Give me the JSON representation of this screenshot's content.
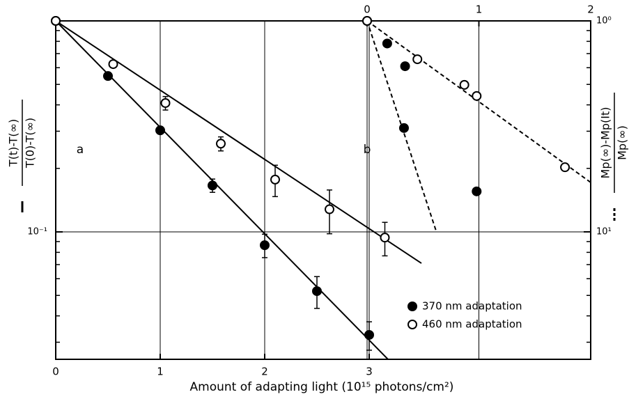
{
  "chart_data": {
    "type": "scatter",
    "xlabel": "Amount of adapting light (10¹⁵ photons/cm²)",
    "ylabel": {
      "numerator": "T(t)-T(∞)",
      "denominator": "T(0)-T(∞)"
    },
    "y2label": {
      "numerator": "Mp(∞)-Mp(It)",
      "denominator": "Mp(∞)"
    },
    "annotations": [
      "a",
      "b"
    ],
    "xlim": [
      0,
      5.12
    ],
    "xticks": [
      0,
      1,
      2,
      3
    ],
    "x2lim": [
      0,
      2
    ],
    "x2ticks": [
      0,
      1,
      2
    ],
    "ylim": [
      0.0249,
      1
    ],
    "yticks": [
      {
        "value": 0.1,
        "label": "10⁻¹"
      }
    ],
    "yminorticks": [
      0.03,
      0.04,
      0.05,
      0.06,
      0.07,
      0.08,
      0.09,
      0.2,
      0.3,
      0.4,
      0.5,
      0.6,
      0.7,
      0.8,
      0.9
    ],
    "y2lim": [
      40.2,
      1
    ],
    "y2ticks": [
      {
        "value": 1,
        "label": "10⁰"
      },
      {
        "value": 10,
        "label": "10¹"
      }
    ],
    "log_y": true,
    "grid": true,
    "legend": "lower right",
    "series": [
      {
        "name": "370 nm adaptation",
        "color": "#000",
        "marker": "filled",
        "line_style": "solid",
        "x": [
          0,
          0.5,
          1.0,
          1.5,
          2.0,
          2.5,
          3.0
        ],
        "values": [
          1,
          0.548,
          0.303,
          0.166,
          0.0865,
          0.0524,
          0.0325
        ],
        "errors": [
          null,
          null,
          null,
          0.012,
          0.011,
          0.009,
          0.005
        ],
        "fit": {
          "x": [
            0,
            3.18
          ],
          "values": [
            1,
            0.0249
          ]
        }
      },
      {
        "name": "460 nm adaptation",
        "color": "#000",
        "marker": "open",
        "line_style": "solid",
        "x": [
          0,
          0.55,
          1.05,
          1.58,
          2.1,
          2.62,
          3.15
        ],
        "values": [
          1,
          0.624,
          0.408,
          0.262,
          0.177,
          0.128,
          0.094
        ],
        "errors": [
          null,
          null,
          0.03,
          0.02,
          0.03,
          0.03,
          0.017
        ],
        "fit": {
          "x": [
            0,
            3.5
          ],
          "values": [
            1,
            0.071
          ]
        }
      },
      {
        "axis": "y2",
        "color": "#000",
        "marker": "filled",
        "line_style": "dashed",
        "x": [
          0,
          0.18,
          0.34,
          0.33,
          0.98
        ],
        "values": [
          1,
          1.28,
          1.64,
          3.22,
          6.43
        ],
        "fit": {
          "x": [
            0,
            0.62
          ],
          "values": [
            1,
            10
          ]
        }
      },
      {
        "axis": "y2",
        "color": "#000",
        "marker": "open",
        "line_style": "dashed",
        "x": [
          0,
          0.45,
          0.87,
          0.98,
          1.77
        ],
        "values": [
          1,
          1.52,
          2.01,
          2.27,
          4.94
        ],
        "fit": {
          "x": [
            0,
            2.0
          ],
          "values": [
            1,
            5.83
          ]
        }
      }
    ]
  }
}
